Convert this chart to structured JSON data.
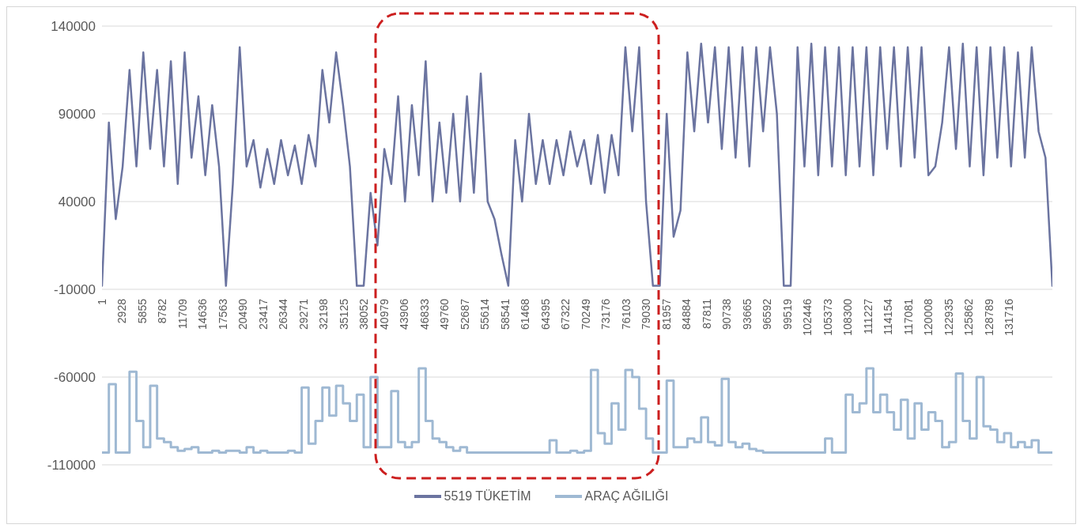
{
  "chart_data": {
    "type": "line",
    "x": [
      1,
      1000,
      2000,
      3000,
      4000,
      5000,
      6000,
      7000,
      8000,
      9000,
      10000,
      11000,
      12000,
      13000,
      14000,
      15000,
      16000,
      17000,
      18000,
      19000,
      20000,
      21000,
      22000,
      23000,
      24000,
      25000,
      26000,
      27000,
      28000,
      29000,
      30000,
      31000,
      32000,
      33000,
      34000,
      35000,
      36000,
      37000,
      38000,
      39000,
      40000,
      41000,
      42000,
      43000,
      44000,
      45000,
      46000,
      47000,
      48000,
      49000,
      50000,
      51000,
      52000,
      53000,
      54000,
      55000,
      56000,
      57000,
      58000,
      59000,
      60000,
      61000,
      62000,
      63000,
      64000,
      65000,
      66000,
      67000,
      68000,
      69000,
      70000,
      71000,
      72000,
      73000,
      74000,
      75000,
      76000,
      77000,
      78000,
      79000,
      80000,
      81000,
      82000,
      83000,
      84000,
      85000,
      86000,
      87000,
      88000,
      89000,
      90000,
      91000,
      92000,
      93000,
      94000,
      95000,
      96000,
      97000,
      98000,
      99000,
      100000,
      101000,
      102000,
      103000,
      104000,
      105000,
      106000,
      107000,
      108000,
      109000,
      110000,
      111000,
      112000,
      113000,
      114000,
      115000,
      116000,
      117000,
      118000,
      119000,
      120000,
      121000,
      122000,
      123000,
      124000,
      125000,
      126000,
      127000,
      128000,
      129000,
      130000,
      131000,
      132000,
      133000,
      134000,
      135000,
      136000,
      137000,
      138000
    ],
    "series": [
      {
        "name": "5519 TÜKETİM",
        "color": "#6b74a0",
        "values": [
          -8000,
          85000,
          30000,
          60000,
          115000,
          60000,
          125000,
          70000,
          115000,
          60000,
          120000,
          50000,
          125000,
          65000,
          100000,
          55000,
          95000,
          60000,
          -8000,
          50000,
          128000,
          60000,
          75000,
          48000,
          70000,
          50000,
          75000,
          55000,
          72000,
          50000,
          78000,
          60000,
          115000,
          85000,
          125000,
          95000,
          60000,
          -8000,
          -8000,
          45000,
          15000,
          70000,
          50000,
          100000,
          40000,
          95000,
          55000,
          120000,
          40000,
          85000,
          45000,
          90000,
          40000,
          100000,
          45000,
          113000,
          40000,
          30000,
          10000,
          -8000,
          75000,
          40000,
          90000,
          50000,
          75000,
          50000,
          75000,
          55000,
          80000,
          60000,
          75000,
          50000,
          78000,
          45000,
          78000,
          55000,
          128000,
          80000,
          128000,
          40000,
          -8000,
          -8000,
          90000,
          20000,
          35000,
          125000,
          80000,
          130000,
          85000,
          128000,
          70000,
          128000,
          65000,
          128000,
          60000,
          128000,
          80000,
          128000,
          90000,
          -8000,
          -8000,
          128000,
          60000,
          130000,
          55000,
          128000,
          60000,
          128000,
          55000,
          128000,
          60000,
          128000,
          55000,
          128000,
          70000,
          128000,
          60000,
          128000,
          65000,
          128000,
          55000,
          60000,
          85000,
          128000,
          70000,
          130000,
          60000,
          128000,
          55000,
          128000,
          65000,
          128000,
          60000,
          125000,
          65000,
          128000,
          80000,
          65000,
          -8000
        ]
      },
      {
        "name": "ARAÇ AĞILIĞI",
        "type": "step",
        "color": "#9fb9d3",
        "values": [
          -103000,
          -64000,
          -103000,
          -103000,
          -57000,
          -85000,
          -100000,
          -65000,
          -95000,
          -97000,
          -100000,
          -102000,
          -101000,
          -100000,
          -103000,
          -103000,
          -102000,
          -103000,
          -102000,
          -102000,
          -103000,
          -100000,
          -103000,
          -102000,
          -103000,
          -103000,
          -103000,
          -102000,
          -103000,
          -66000,
          -98000,
          -85000,
          -66000,
          -82000,
          -65000,
          -75000,
          -85000,
          -70000,
          -100000,
          -60000,
          -100000,
          -100000,
          -68000,
          -97000,
          -100000,
          -97000,
          -55000,
          -85000,
          -95000,
          -97000,
          -100000,
          -102000,
          -100000,
          -103000,
          -103000,
          -103000,
          -103000,
          -103000,
          -103000,
          -103000,
          -103000,
          -103000,
          -103000,
          -103000,
          -103000,
          -96000,
          -103000,
          -103000,
          -102000,
          -103000,
          -102000,
          -56000,
          -92000,
          -98000,
          -75000,
          -90000,
          -56000,
          -60000,
          -78000,
          -95000,
          -103000,
          -103000,
          -62000,
          -100000,
          -100000,
          -95000,
          -97000,
          -83000,
          -97000,
          -99000,
          -61000,
          -97000,
          -100000,
          -98000,
          -101000,
          -102000,
          -103000,
          -103000,
          -103000,
          -103000,
          -103000,
          -103000,
          -103000,
          -103000,
          -103000,
          -95000,
          -103000,
          -103000,
          -70000,
          -80000,
          -75000,
          -55000,
          -80000,
          -70000,
          -80000,
          -90000,
          -73000,
          -95000,
          -75000,
          -90000,
          -80000,
          -85000,
          -100000,
          -97000,
          -58000,
          -85000,
          -95000,
          -60000,
          -88000,
          -90000,
          -97000,
          -92000,
          -100000,
          -97000,
          -100000,
          -96000,
          -103000,
          -103000,
          -103000
        ]
      }
    ],
    "xlim": [
      1,
      138000
    ],
    "xticks": [
      1,
      2928,
      5855,
      8782,
      11709,
      14636,
      17563,
      20490,
      23417,
      26344,
      29271,
      32198,
      35125,
      38052,
      40979,
      43906,
      46833,
      49760,
      52687,
      55614,
      58541,
      61468,
      64395,
      67322,
      70249,
      73176,
      76103,
      79030,
      81957,
      84884,
      87811,
      90738,
      93665,
      96592,
      99519,
      102446,
      105373,
      108300,
      111227,
      114154,
      117081,
      120008,
      122935,
      125862,
      128789,
      131716
    ],
    "ylim": [
      -110000,
      140000
    ],
    "yticks": [
      -110000,
      -60000,
      -10000,
      40000,
      90000,
      140000
    ],
    "grid": "y",
    "legend": "bottom"
  }
}
